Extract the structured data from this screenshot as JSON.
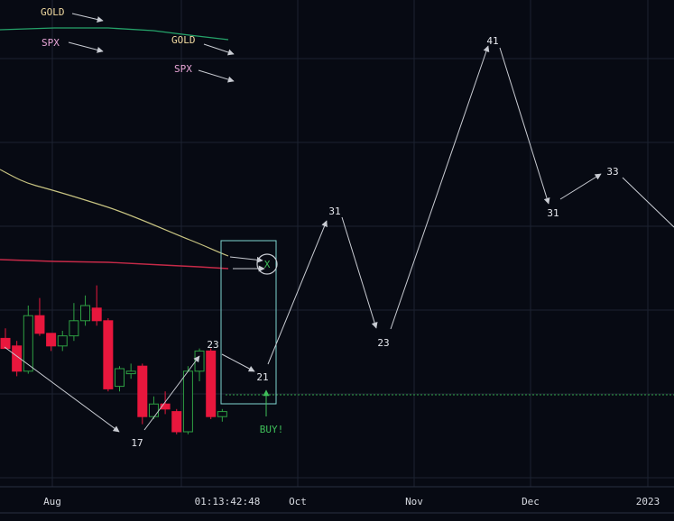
{
  "colors": {
    "background": "#070a13",
    "grid": "#1c2230",
    "up": "#2ea043",
    "down": "#e8173d",
    "arrow": "#c9ccd3",
    "gold": "#f0d9a0",
    "spx": "#e8a6d8",
    "gold_line": "#c8c482",
    "spx_line": "#c62a48",
    "green_line": "#25a36a",
    "box": "#7fd6d0",
    "buy": "#3fbf5a"
  },
  "legend": {
    "top": [
      {
        "label": "GOLD",
        "series": "gold"
      },
      {
        "label": "SPX",
        "series": "spx"
      }
    ],
    "inline": [
      {
        "label": "GOLD",
        "series": "gold"
      },
      {
        "label": "SPX",
        "series": "spx"
      }
    ]
  },
  "x_axis": {
    "ticks": [
      "Aug",
      "Oct",
      "Nov",
      "Dec",
      "2023"
    ],
    "crosshair_label": "01:13:42:48"
  },
  "annotations": {
    "wave_labels": [
      "17",
      "23",
      "21",
      "31",
      "23",
      "41",
      "31",
      "33"
    ],
    "buy_label": "BUY!",
    "cross_marker": "X"
  },
  "chart_data": {
    "type": "candlestick",
    "title": "",
    "xlabel": "",
    "ylabel": "",
    "x_ticks": [
      "Aug",
      "Oct",
      "Nov",
      "Dec",
      "2023"
    ],
    "candles": [
      {
        "o": 22.7,
        "h": 23.1,
        "l": 22.3,
        "c": 22.3
      },
      {
        "o": 22.4,
        "h": 22.6,
        "l": 21.2,
        "c": 21.4
      },
      {
        "o": 21.4,
        "h": 24.0,
        "l": 21.3,
        "c": 23.6
      },
      {
        "o": 23.6,
        "h": 24.3,
        "l": 22.8,
        "c": 22.9
      },
      {
        "o": 22.9,
        "h": 22.9,
        "l": 22.2,
        "c": 22.4
      },
      {
        "o": 22.4,
        "h": 23.0,
        "l": 22.2,
        "c": 22.8
      },
      {
        "o": 22.8,
        "h": 24.1,
        "l": 22.6,
        "c": 23.4
      },
      {
        "o": 23.4,
        "h": 24.4,
        "l": 23.2,
        "c": 24.0
      },
      {
        "o": 23.9,
        "h": 24.8,
        "l": 23.2,
        "c": 23.4
      },
      {
        "o": 23.4,
        "h": 23.5,
        "l": 20.6,
        "c": 20.7
      },
      {
        "o": 20.8,
        "h": 21.6,
        "l": 20.6,
        "c": 21.5
      },
      {
        "o": 21.3,
        "h": 21.7,
        "l": 21.1,
        "c": 21.4
      },
      {
        "o": 21.6,
        "h": 21.7,
        "l": 19.3,
        "c": 19.6
      },
      {
        "o": 19.6,
        "h": 20.4,
        "l": 19.5,
        "c": 20.1
      },
      {
        "o": 20.1,
        "h": 20.6,
        "l": 19.7,
        "c": 19.9
      },
      {
        "o": 19.8,
        "h": 19.9,
        "l": 18.9,
        "c": 19.0
      },
      {
        "o": 19.0,
        "h": 21.6,
        "l": 18.9,
        "c": 21.4
      },
      {
        "o": 21.4,
        "h": 22.3,
        "l": 21.0,
        "c": 22.2
      },
      {
        "o": 22.2,
        "h": 22.3,
        "l": 19.5,
        "c": 19.6
      },
      {
        "o": 19.6,
        "h": 19.9,
        "l": 19.4,
        "c": 19.8
      }
    ],
    "projected_path": [
      {
        "label": "17",
        "x": "Aug",
        "y": 17
      },
      {
        "label": "23",
        "y": 23
      },
      {
        "label": "21",
        "y": 21
      },
      {
        "label": "31",
        "x": "Oct",
        "y": 31
      },
      {
        "label": "23",
        "y": 23
      },
      {
        "label": "41",
        "y": 41
      },
      {
        "label": "31",
        "x": "Dec",
        "y": 31
      },
      {
        "label": "33",
        "y": 33
      }
    ],
    "series": [
      {
        "name": "GOLD",
        "color": "#c8c482"
      },
      {
        "name": "SPX",
        "color": "#c62a48"
      }
    ],
    "grid": true
  }
}
